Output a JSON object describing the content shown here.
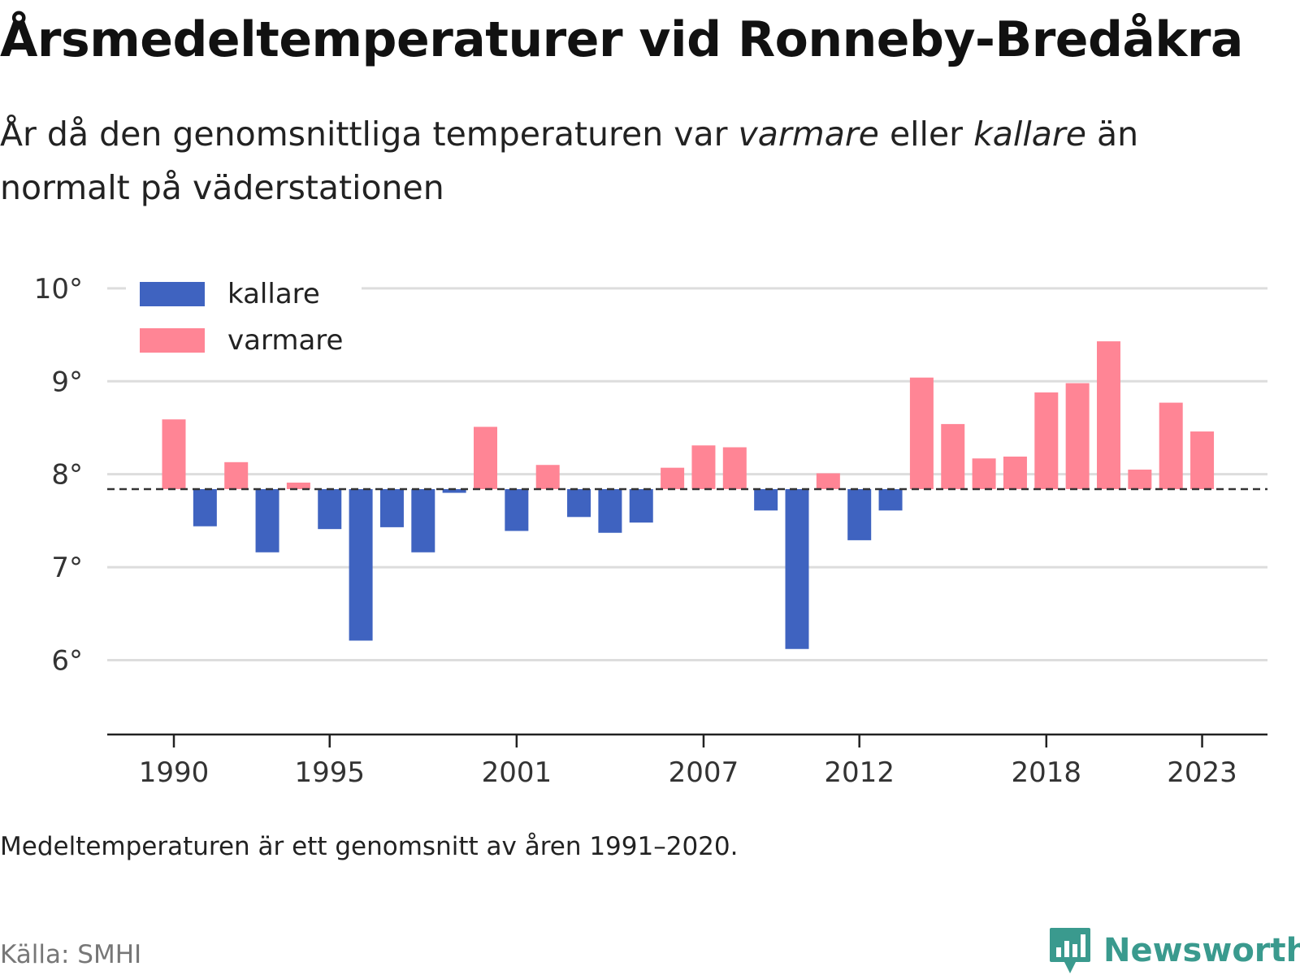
{
  "header": {
    "title": "Årsmedeltemperaturer vid Ronneby-Bredåkra",
    "subtitle_pre": "År då den genomsnittliga temperaturen var ",
    "subtitle_warm": "varmare",
    "subtitle_mid": " eller ",
    "subtitle_cold": "kallare",
    "subtitle_post": " än normalt på väderstationen"
  },
  "footer": {
    "note": "Medeltemperaturen är ett genomsnitt av åren 1991–2020.",
    "source": "Källa: SMHI",
    "brand": "Newsworthy"
  },
  "colors": {
    "cold": "#3f63c0",
    "warm": "#ff8595",
    "baseline": "#333333",
    "grid": "#dddddd",
    "brand": "#3a9a8e"
  },
  "icons": {
    "brand_logo": "bar-chart-speech-bubble-icon"
  },
  "chart_data": {
    "type": "bar",
    "baseline": 7.84,
    "ylim": [
      5.2,
      10.2
    ],
    "yticks": [
      6,
      7,
      8,
      9,
      10
    ],
    "ytick_labels": [
      "6°",
      "7°",
      "8°",
      "9°",
      "10°"
    ],
    "xticks": [
      1990,
      1995,
      2001,
      2007,
      2012,
      2018,
      2023
    ],
    "xtick_labels": [
      "1990",
      "1995",
      "2001",
      "2007",
      "2012",
      "2018",
      "2023"
    ],
    "grid": true,
    "legend": {
      "placement": "top-left",
      "entries": [
        {
          "key": "cold",
          "label": "kallare"
        },
        {
          "key": "warm",
          "label": "varmare"
        }
      ]
    },
    "categories": [
      1990,
      1991,
      1992,
      1993,
      1994,
      1995,
      1996,
      1997,
      1998,
      1999,
      2000,
      2001,
      2002,
      2003,
      2004,
      2005,
      2006,
      2007,
      2008,
      2009,
      2010,
      2011,
      2012,
      2013,
      2014,
      2015,
      2016,
      2017,
      2018,
      2019,
      2020,
      2021,
      2022,
      2023
    ],
    "values": [
      8.59,
      7.44,
      8.13,
      7.16,
      7.91,
      7.41,
      6.21,
      7.43,
      7.16,
      7.8,
      8.51,
      7.39,
      8.1,
      7.54,
      7.37,
      7.48,
      8.07,
      8.31,
      8.29,
      7.61,
      6.12,
      8.01,
      7.29,
      7.61,
      9.04,
      8.54,
      8.17,
      8.19,
      8.88,
      8.98,
      9.43,
      8.05,
      8.77,
      8.46
    ]
  }
}
